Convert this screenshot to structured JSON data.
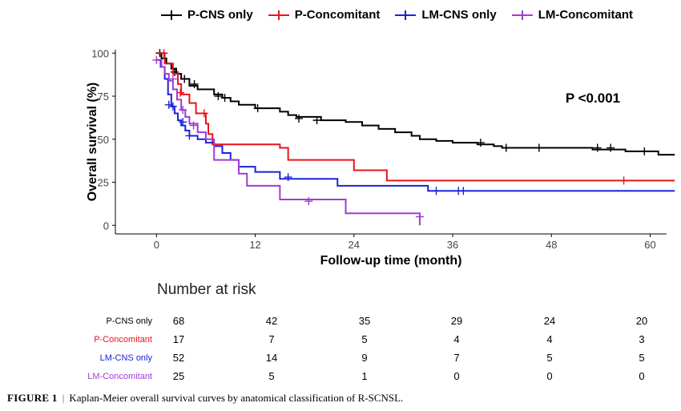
{
  "chart_data": {
    "type": "line",
    "subtype": "kaplan-meier",
    "title": "",
    "xlabel": "Follow-up time (month)",
    "ylabel": "Overall survival (%)",
    "xlim": [
      -5,
      62
    ],
    "ylim": [
      -5,
      102
    ],
    "xticks": [
      0,
      12,
      24,
      36,
      48,
      60
    ],
    "yticks": [
      0,
      25,
      50,
      75,
      100
    ],
    "annotation": "P <0.001",
    "legend_position": "top",
    "series": [
      {
        "name": "P-CNS only",
        "color": "#000000",
        "steps": [
          [
            0,
            100
          ],
          [
            0.6,
            97
          ],
          [
            1.2,
            94
          ],
          [
            1.8,
            91
          ],
          [
            2.4,
            88
          ],
          [
            3,
            85
          ],
          [
            4,
            81
          ],
          [
            5,
            79
          ],
          [
            7,
            76
          ],
          [
            8,
            74
          ],
          [
            9,
            72
          ],
          [
            10,
            70
          ],
          [
            12,
            68
          ],
          [
            15,
            66
          ],
          [
            16,
            64
          ],
          [
            17,
            63
          ],
          [
            20,
            61
          ],
          [
            23,
            60
          ],
          [
            25,
            58
          ],
          [
            27,
            56
          ],
          [
            29,
            54
          ],
          [
            31,
            52
          ],
          [
            32,
            50
          ],
          [
            34,
            49
          ],
          [
            36,
            48
          ],
          [
            39,
            47
          ],
          [
            41,
            46
          ],
          [
            42,
            45
          ],
          [
            53,
            44
          ],
          [
            57,
            43
          ],
          [
            61,
            41
          ],
          [
            63,
            41
          ]
        ],
        "censors": [
          [
            0.4,
            100
          ],
          [
            2.2,
            89
          ],
          [
            3.4,
            85
          ],
          [
            4.6,
            82
          ],
          [
            7.5,
            75
          ],
          [
            8.3,
            74
          ],
          [
            12.3,
            68
          ],
          [
            17.3,
            62
          ],
          [
            19.5,
            61
          ],
          [
            39.4,
            48
          ],
          [
            42.5,
            45
          ],
          [
            46.5,
            45
          ],
          [
            53.6,
            45
          ],
          [
            55.2,
            45
          ],
          [
            59.3,
            43
          ]
        ]
      },
      {
        "name": "P-Concomitant",
        "color": "#e8141b",
        "steps": [
          [
            0,
            100
          ],
          [
            1,
            94
          ],
          [
            2,
            88
          ],
          [
            2.6,
            82
          ],
          [
            3,
            76
          ],
          [
            4,
            71
          ],
          [
            4.8,
            65
          ],
          [
            6,
            59
          ],
          [
            6.3,
            53
          ],
          [
            6.8,
            47
          ],
          [
            15,
            45
          ],
          [
            16,
            38
          ],
          [
            24,
            32
          ],
          [
            28,
            26
          ],
          [
            63,
            26
          ]
        ],
        "censors": [
          [
            0.9,
            100
          ],
          [
            2.9,
            77
          ],
          [
            5.8,
            65
          ],
          [
            56.8,
            26
          ]
        ]
      },
      {
        "name": "LM-CNS only",
        "color": "#1a24d8",
        "steps": [
          [
            0,
            96
          ],
          [
            0.5,
            92
          ],
          [
            1,
            85
          ],
          [
            1.4,
            76
          ],
          [
            1.8,
            69
          ],
          [
            2.2,
            65
          ],
          [
            2.6,
            61
          ],
          [
            3,
            58
          ],
          [
            3.5,
            55
          ],
          [
            4,
            52
          ],
          [
            5,
            50
          ],
          [
            6,
            48
          ],
          [
            7,
            46
          ],
          [
            8,
            42
          ],
          [
            9,
            38
          ],
          [
            10,
            34
          ],
          [
            12,
            31
          ],
          [
            15,
            27
          ],
          [
            22,
            23
          ],
          [
            33,
            20
          ],
          [
            63,
            20
          ]
        ],
        "censors": [
          [
            1.5,
            70
          ],
          [
            2,
            69
          ],
          [
            3.2,
            60
          ],
          [
            4,
            52
          ],
          [
            16,
            28
          ],
          [
            34,
            20
          ],
          [
            36.7,
            20
          ],
          [
            37.3,
            20
          ]
        ]
      },
      {
        "name": "LM-Concomitant",
        "color": "#a03bd6",
        "steps": [
          [
            0,
            96
          ],
          [
            0.6,
            92
          ],
          [
            1,
            88
          ],
          [
            1.5,
            84
          ],
          [
            2,
            79
          ],
          [
            2.5,
            73
          ],
          [
            3,
            67
          ],
          [
            3.5,
            63
          ],
          [
            4,
            59
          ],
          [
            5,
            54
          ],
          [
            6,
            50
          ],
          [
            7,
            38
          ],
          [
            10,
            30
          ],
          [
            11,
            23
          ],
          [
            15,
            15
          ],
          [
            23,
            7
          ],
          [
            32,
            0
          ]
        ],
        "censors": [
          [
            0,
            96
          ],
          [
            2,
            85
          ],
          [
            3.2,
            67
          ],
          [
            4.5,
            58
          ],
          [
            18.5,
            14
          ],
          [
            32,
            5
          ]
        ]
      }
    ],
    "risk_table": {
      "title": "Number at risk",
      "times": [
        0,
        12,
        24,
        36,
        48,
        60
      ],
      "rows": [
        {
          "label": "P-CNS only",
          "color": "#000000",
          "values": [
            68,
            42,
            35,
            29,
            24,
            20
          ]
        },
        {
          "label": "P-Concomitant",
          "color": "#e8141b",
          "values": [
            17,
            7,
            5,
            4,
            4,
            3
          ]
        },
        {
          "label": "LM-CNS only",
          "color": "#1a24d8",
          "values": [
            52,
            14,
            9,
            7,
            5,
            5
          ]
        },
        {
          "label": "LM-Concomitant",
          "color": "#a03bd6",
          "values": [
            25,
            5,
            1,
            0,
            0,
            0
          ]
        }
      ]
    }
  },
  "caption": {
    "figure_label": "FIGURE 1",
    "separator": "|",
    "text": "Kaplan-Meier overall survival curves by anatomical classification of R-SCNSL."
  }
}
